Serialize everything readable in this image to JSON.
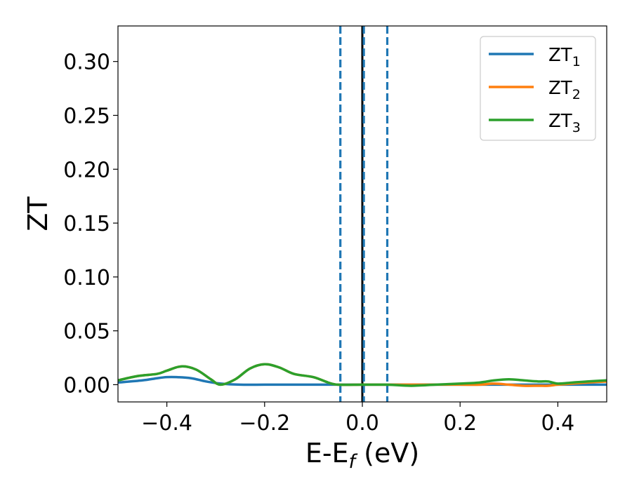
{
  "chart_data": {
    "type": "line",
    "title": "",
    "xlabel": {
      "main": "E-E",
      "sub": "f",
      "suffix": " (eV)"
    },
    "ylabel": "ZT",
    "xlim": [
      -0.5,
      0.5
    ],
    "ylim": [
      -0.016,
      0.333
    ],
    "grid": false,
    "legend_placement": "top-right",
    "x_ticks": [
      -0.4,
      -0.2,
      0.0,
      0.2,
      0.4
    ],
    "x_tick_labels": [
      "−0.4",
      "−0.2",
      "0.0",
      "0.2",
      "0.4"
    ],
    "y_ticks": [
      0.0,
      0.05,
      0.1,
      0.15,
      0.2,
      0.25,
      0.3
    ],
    "y_tick_labels": [
      "0.00",
      "0.05",
      "0.10",
      "0.15",
      "0.20",
      "0.25",
      "0.30"
    ],
    "vertical_lines": [
      {
        "x": 0.0,
        "style": "solid",
        "color": "#000000"
      },
      {
        "x": -0.045,
        "style": "dashed",
        "color": "#1f77b4"
      },
      {
        "x": 0.003,
        "style": "dashed",
        "color": "#1f77b4"
      },
      {
        "x": 0.051,
        "style": "dashed",
        "color": "#1f77b4"
      }
    ],
    "series": [
      {
        "name": "ZT",
        "sub": "1",
        "color": "#1f77b4",
        "x": [
          -0.5,
          -0.45,
          -0.42,
          -0.4,
          -0.38,
          -0.35,
          -0.32,
          -0.29,
          -0.25,
          -0.2,
          -0.15,
          -0.1,
          -0.05,
          0.0,
          0.05,
          0.1,
          0.15,
          0.2,
          0.25,
          0.3,
          0.35,
          0.4,
          0.45,
          0.5
        ],
        "y": [
          0.002,
          0.004,
          0.006,
          0.007,
          0.007,
          0.006,
          0.003,
          0.001,
          0.0,
          0.0,
          0.0,
          0.0,
          0.0,
          0.0,
          0.0,
          0.0,
          0.0,
          0.0,
          0.0,
          0.0,
          0.0,
          0.0,
          0.0,
          0.0
        ]
      },
      {
        "name": "ZT",
        "sub": "2",
        "color": "#ff7f0e",
        "x": [
          -0.5,
          -0.46,
          -0.42,
          -0.4,
          -0.37,
          -0.34,
          -0.31,
          -0.29,
          -0.26,
          -0.23,
          -0.2,
          -0.17,
          -0.14,
          -0.1,
          -0.07,
          -0.05,
          0.0,
          0.05,
          0.1,
          0.15,
          0.2,
          0.24,
          0.27,
          0.3,
          0.33,
          0.36,
          0.38,
          0.4,
          0.43,
          0.46,
          0.5
        ],
        "y": [
          0.004,
          0.008,
          0.01,
          0.013,
          0.017,
          0.014,
          0.005,
          0.0,
          0.005,
          0.015,
          0.019,
          0.016,
          0.01,
          0.007,
          0.002,
          0.0,
          0.0,
          0.0,
          0.0,
          0.0,
          0.0,
          0.0,
          0.001,
          0.0,
          -0.001,
          -0.001,
          -0.001,
          0.0,
          0.001,
          0.002,
          0.003
        ]
      },
      {
        "name": "ZT",
        "sub": "3",
        "color": "#2ca02c",
        "x": [
          -0.5,
          -0.46,
          -0.42,
          -0.4,
          -0.37,
          -0.34,
          -0.31,
          -0.29,
          -0.26,
          -0.23,
          -0.2,
          -0.17,
          -0.14,
          -0.1,
          -0.07,
          -0.05,
          0.0,
          0.05,
          0.1,
          0.15,
          0.2,
          0.24,
          0.27,
          0.3,
          0.33,
          0.36,
          0.38,
          0.4,
          0.43,
          0.46,
          0.5
        ],
        "y": [
          0.004,
          0.008,
          0.01,
          0.013,
          0.017,
          0.014,
          0.005,
          0.0,
          0.005,
          0.015,
          0.019,
          0.016,
          0.01,
          0.007,
          0.002,
          0.0,
          0.0,
          0.0,
          -0.001,
          0.0,
          0.001,
          0.002,
          0.004,
          0.005,
          0.004,
          0.003,
          0.003,
          0.001,
          0.002,
          0.003,
          0.004
        ]
      }
    ]
  }
}
